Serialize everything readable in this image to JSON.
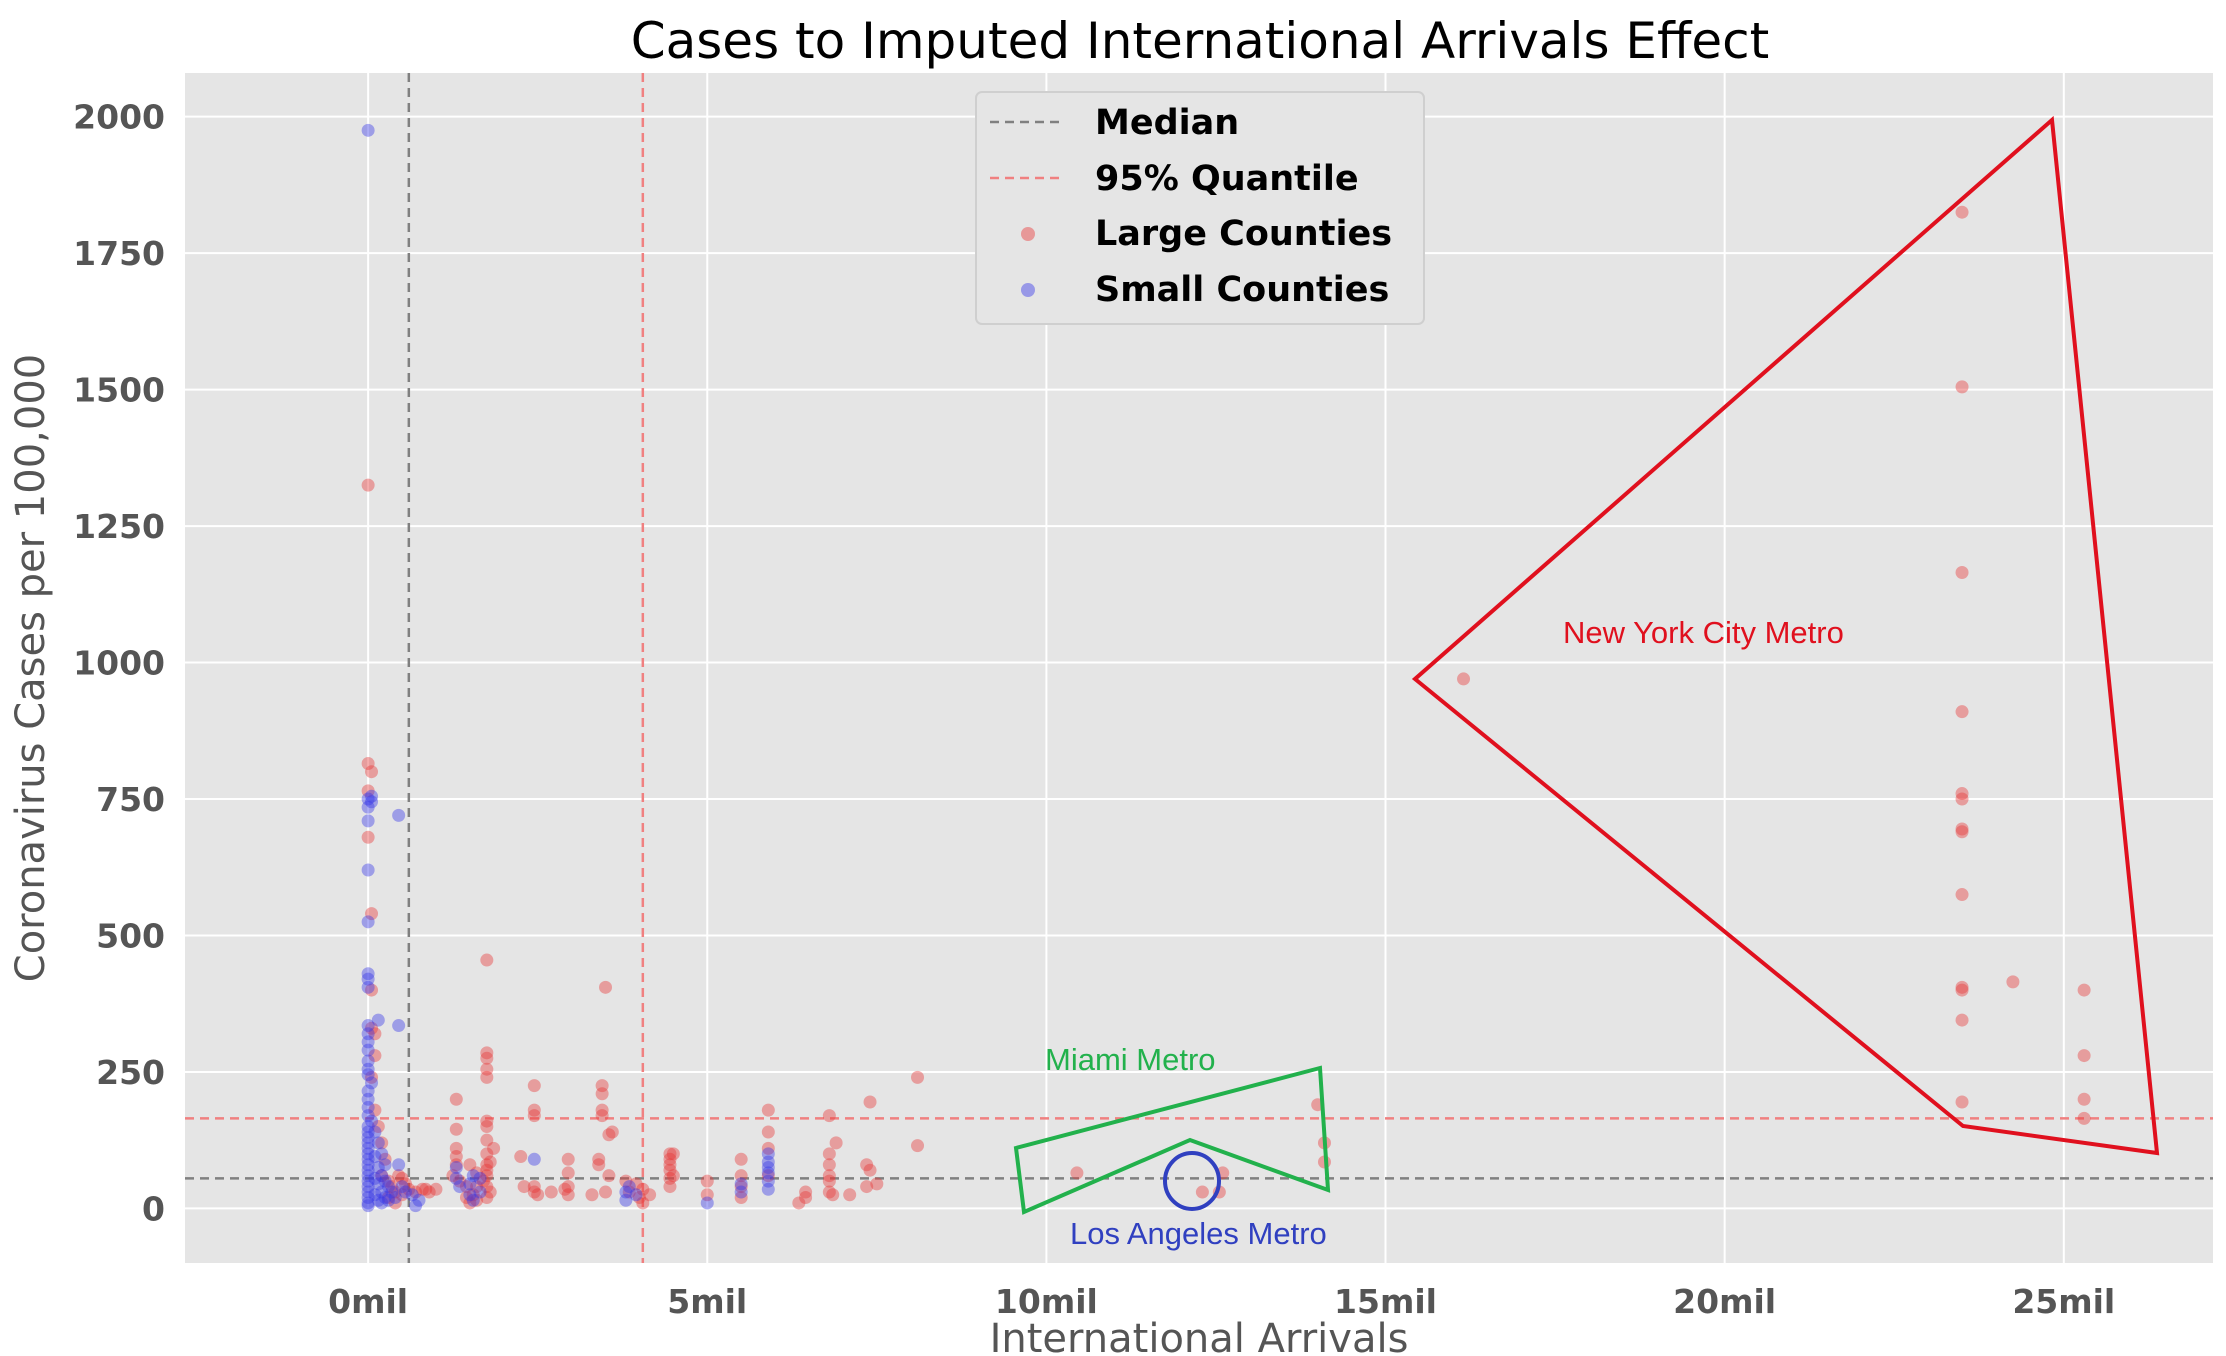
{
  "chart_data": {
    "type": "scatter",
    "title": "Cases to Imputed International Arrivals Effect",
    "xlabel": "International Arrivals",
    "ylabel": "Coronavirus Cases per 100,000",
    "xlim": [
      -2.7,
      27.2
    ],
    "ylim": [
      -100,
      2080
    ],
    "x_unit": "mil",
    "xticks": [
      0,
      5,
      10,
      15,
      20,
      25
    ],
    "xtick_labels": [
      "0mil",
      "5mil",
      "10mil",
      "15mil",
      "20mil",
      "25mil"
    ],
    "yticks": [
      0,
      250,
      500,
      750,
      1000,
      1250,
      1500,
      1750,
      2000
    ],
    "ytick_labels": [
      "0",
      "250",
      "500",
      "750",
      "1000",
      "1250",
      "1500",
      "1750",
      "2000"
    ],
    "grid": true,
    "legend_position": "top-center",
    "reference_lines": [
      {
        "name": "Median",
        "axis": "both",
        "x": 0.6,
        "y": 55,
        "color": "#808080",
        "style": "dashed"
      },
      {
        "name": "95% Quantile",
        "axis": "both",
        "x": 4.05,
        "y": 165,
        "color": "#f08080",
        "style": "dashed"
      }
    ],
    "series": [
      {
        "name": "Large Counties",
        "color": "#e83a3a",
        "points": [
          [
            0.0,
            1325
          ],
          [
            0.0,
            815
          ],
          [
            0.05,
            800
          ],
          [
            0.0,
            765
          ],
          [
            0.0,
            680
          ],
          [
            0.05,
            540
          ],
          [
            0.05,
            400
          ],
          [
            0.05,
            330
          ],
          [
            0.1,
            320
          ],
          [
            0.1,
            280
          ],
          [
            0.05,
            240
          ],
          [
            0.1,
            180
          ],
          [
            0.15,
            150
          ],
          [
            0.2,
            120
          ],
          [
            0.25,
            90
          ],
          [
            0.2,
            60
          ],
          [
            0.3,
            50
          ],
          [
            0.35,
            40
          ],
          [
            0.4,
            30
          ],
          [
            0.45,
            60
          ],
          [
            0.5,
            55
          ],
          [
            0.55,
            45
          ],
          [
            0.6,
            35
          ],
          [
            0.7,
            30
          ],
          [
            0.8,
            35
          ],
          [
            0.9,
            30
          ],
          [
            0.3,
            20
          ],
          [
            0.4,
            10
          ],
          [
            0.5,
            25
          ],
          [
            0.85,
            35
          ],
          [
            1.0,
            35
          ],
          [
            1.3,
            200
          ],
          [
            1.3,
            145
          ],
          [
            1.3,
            110
          ],
          [
            1.3,
            95
          ],
          [
            1.3,
            80
          ],
          [
            1.25,
            60
          ],
          [
            1.35,
            50
          ],
          [
            1.45,
            40
          ],
          [
            1.5,
            80
          ],
          [
            1.45,
            20
          ],
          [
            1.5,
            10
          ],
          [
            1.55,
            25
          ],
          [
            1.6,
            15
          ],
          [
            1.6,
            65
          ],
          [
            1.6,
            40
          ],
          [
            1.75,
            455
          ],
          [
            1.75,
            285
          ],
          [
            1.75,
            275
          ],
          [
            1.75,
            255
          ],
          [
            1.75,
            240
          ],
          [
            1.75,
            160
          ],
          [
            1.75,
            150
          ],
          [
            1.75,
            125
          ],
          [
            1.75,
            100
          ],
          [
            1.75,
            80
          ],
          [
            1.75,
            70
          ],
          [
            1.75,
            60
          ],
          [
            1.7,
            50
          ],
          [
            1.75,
            40
          ],
          [
            1.8,
            30
          ],
          [
            1.75,
            20
          ],
          [
            1.85,
            110
          ],
          [
            1.8,
            85
          ],
          [
            2.25,
            95
          ],
          [
            2.3,
            40
          ],
          [
            2.45,
            225
          ],
          [
            2.45,
            180
          ],
          [
            2.45,
            170
          ],
          [
            2.45,
            40
          ],
          [
            2.45,
            30
          ],
          [
            2.5,
            25
          ],
          [
            2.7,
            30
          ],
          [
            2.9,
            35
          ],
          [
            2.95,
            90
          ],
          [
            2.95,
            65
          ],
          [
            2.95,
            40
          ],
          [
            2.95,
            25
          ],
          [
            3.3,
            25
          ],
          [
            3.4,
            90
          ],
          [
            3.4,
            80
          ],
          [
            3.45,
            225
          ],
          [
            3.45,
            210
          ],
          [
            3.45,
            180
          ],
          [
            3.5,
            405
          ],
          [
            3.45,
            170
          ],
          [
            3.55,
            135
          ],
          [
            3.6,
            140
          ],
          [
            3.55,
            60
          ],
          [
            3.5,
            30
          ],
          [
            3.8,
            50
          ],
          [
            3.85,
            30
          ],
          [
            3.95,
            45
          ],
          [
            4.05,
            35
          ],
          [
            4.0,
            20
          ],
          [
            4.05,
            10
          ],
          [
            4.15,
            25
          ],
          [
            4.45,
            100
          ],
          [
            4.45,
            90
          ],
          [
            4.45,
            80
          ],
          [
            4.45,
            70
          ],
          [
            4.45,
            55
          ],
          [
            4.45,
            40
          ],
          [
            4.5,
            100
          ],
          [
            4.5,
            60
          ],
          [
            5.0,
            50
          ],
          [
            5.0,
            25
          ],
          [
            5.5,
            90
          ],
          [
            5.5,
            60
          ],
          [
            5.5,
            40
          ],
          [
            5.5,
            20
          ],
          [
            5.9,
            180
          ],
          [
            5.9,
            140
          ],
          [
            5.9,
            110
          ],
          [
            5.9,
            60
          ],
          [
            6.35,
            10
          ],
          [
            6.45,
            30
          ],
          [
            6.45,
            20
          ],
          [
            6.8,
            170
          ],
          [
            6.8,
            100
          ],
          [
            6.9,
            120
          ],
          [
            6.8,
            80
          ],
          [
            6.8,
            60
          ],
          [
            6.8,
            50
          ],
          [
            6.8,
            30
          ],
          [
            6.85,
            25
          ],
          [
            7.1,
            25
          ],
          [
            7.4,
            195
          ],
          [
            7.35,
            80
          ],
          [
            7.4,
            70
          ],
          [
            7.35,
            40
          ],
          [
            7.5,
            45
          ],
          [
            8.1,
            240
          ],
          [
            8.1,
            115
          ],
          [
            10.45,
            65
          ],
          [
            12.3,
            30
          ],
          [
            12.55,
            30
          ],
          [
            12.6,
            65
          ],
          [
            14.0,
            190
          ],
          [
            14.1,
            120
          ],
          [
            14.1,
            85
          ],
          [
            16.15,
            970
          ],
          [
            23.5,
            1825
          ],
          [
            23.5,
            1505
          ],
          [
            23.5,
            1165
          ],
          [
            23.5,
            910
          ],
          [
            23.5,
            760
          ],
          [
            23.5,
            750
          ],
          [
            23.5,
            695
          ],
          [
            23.5,
            690
          ],
          [
            23.5,
            575
          ],
          [
            23.5,
            405
          ],
          [
            23.5,
            400
          ],
          [
            23.5,
            345
          ],
          [
            23.5,
            195
          ],
          [
            24.25,
            415
          ],
          [
            25.3,
            400
          ],
          [
            25.3,
            280
          ],
          [
            25.3,
            200
          ],
          [
            25.3,
            165
          ]
        ]
      },
      {
        "name": "Small Counties",
        "color": "#3a3ae8",
        "points": [
          [
            0.0,
            1975
          ],
          [
            0.0,
            750
          ],
          [
            0.05,
            755
          ],
          [
            0.05,
            745
          ],
          [
            0.0,
            735
          ],
          [
            0.0,
            710
          ],
          [
            0.45,
            720
          ],
          [
            0.0,
            620
          ],
          [
            0.0,
            525
          ],
          [
            0.0,
            430
          ],
          [
            0.0,
            420
          ],
          [
            0.0,
            405
          ],
          [
            0.15,
            345
          ],
          [
            0.45,
            335
          ],
          [
            0.0,
            335
          ],
          [
            0.0,
            320
          ],
          [
            0.0,
            305
          ],
          [
            0.0,
            290
          ],
          [
            0.0,
            270
          ],
          [
            0.0,
            255
          ],
          [
            0.0,
            245
          ],
          [
            0.05,
            230
          ],
          [
            0.0,
            215
          ],
          [
            0.0,
            200
          ],
          [
            0.0,
            185
          ],
          [
            0.0,
            170
          ],
          [
            0.05,
            160
          ],
          [
            0.0,
            150
          ],
          [
            0.0,
            140
          ],
          [
            0.0,
            130
          ],
          [
            0.0,
            120
          ],
          [
            0.0,
            110
          ],
          [
            0.0,
            100
          ],
          [
            0.0,
            90
          ],
          [
            0.0,
            80
          ],
          [
            0.0,
            70
          ],
          [
            0.0,
            60
          ],
          [
            0.0,
            50
          ],
          [
            0.0,
            40
          ],
          [
            0.0,
            30
          ],
          [
            0.0,
            20
          ],
          [
            0.0,
            10
          ],
          [
            0.0,
            5
          ],
          [
            0.1,
            140
          ],
          [
            0.1,
            95
          ],
          [
            0.1,
            55
          ],
          [
            0.1,
            25
          ],
          [
            0.15,
            120
          ],
          [
            0.15,
            75
          ],
          [
            0.15,
            45
          ],
          [
            0.15,
            15
          ],
          [
            0.2,
            100
          ],
          [
            0.2,
            60
          ],
          [
            0.2,
            30
          ],
          [
            0.2,
            10
          ],
          [
            0.25,
            80
          ],
          [
            0.25,
            50
          ],
          [
            0.25,
            20
          ],
          [
            0.3,
            40
          ],
          [
            0.3,
            15
          ],
          [
            0.35,
            30
          ],
          [
            0.4,
            20
          ],
          [
            0.45,
            80
          ],
          [
            0.5,
            40
          ],
          [
            0.55,
            30
          ],
          [
            0.65,
            25
          ],
          [
            0.7,
            5
          ],
          [
            0.75,
            15
          ],
          [
            1.3,
            75
          ],
          [
            1.3,
            55
          ],
          [
            1.35,
            40
          ],
          [
            1.5,
            45
          ],
          [
            1.5,
            25
          ],
          [
            1.55,
            60
          ],
          [
            1.55,
            15
          ],
          [
            1.65,
            30
          ],
          [
            1.65,
            55
          ],
          [
            2.45,
            90
          ],
          [
            3.8,
            30
          ],
          [
            3.8,
            15
          ],
          [
            3.85,
            40
          ],
          [
            3.95,
            25
          ],
          [
            5.0,
            10
          ],
          [
            5.5,
            45
          ],
          [
            5.5,
            30
          ],
          [
            5.9,
            100
          ],
          [
            5.9,
            85
          ],
          [
            5.9,
            75
          ],
          [
            5.9,
            65
          ],
          [
            5.9,
            50
          ],
          [
            5.9,
            35
          ]
        ]
      }
    ],
    "annotations": [
      {
        "label": "New York City Metro",
        "color": "#e0101e"
      },
      {
        "label": "Miami Metro",
        "color": "#22b14c"
      },
      {
        "label": "Los Angeles Metro",
        "color": "#3040c0"
      }
    ]
  }
}
